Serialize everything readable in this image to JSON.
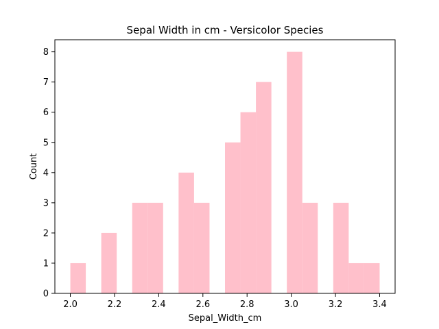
{
  "chart_data": {
    "type": "bar",
    "title": "Sepal Width in cm - Versicolor Species",
    "xlabel": "Sepal_Width_cm",
    "ylabel": "Count",
    "bar_color": "#ffc0cb",
    "bin_width": 0.07,
    "xlim": [
      1.93,
      3.47
    ],
    "ylim": [
      0,
      8.4
    ],
    "x_ticks": [
      2.0,
      2.2,
      2.4,
      2.6,
      2.8,
      3.0,
      3.2,
      3.4
    ],
    "x_tick_labels": [
      "2.0",
      "2.2",
      "2.4",
      "2.6",
      "2.8",
      "3.0",
      "3.2",
      "3.4"
    ],
    "y_ticks": [
      0,
      1,
      2,
      3,
      4,
      5,
      6,
      7,
      8
    ],
    "y_tick_labels": [
      "0",
      "1",
      "2",
      "3",
      "4",
      "5",
      "6",
      "7",
      "8"
    ],
    "bins": [
      {
        "x0": 2.0,
        "x1": 2.07,
        "count": 1
      },
      {
        "x0": 2.07,
        "x1": 2.14,
        "count": 0
      },
      {
        "x0": 2.14,
        "x1": 2.21,
        "count": 2
      },
      {
        "x0": 2.21,
        "x1": 2.28,
        "count": 0
      },
      {
        "x0": 2.28,
        "x1": 2.35,
        "count": 3
      },
      {
        "x0": 2.35,
        "x1": 2.42,
        "count": 3
      },
      {
        "x0": 2.42,
        "x1": 2.49,
        "count": 0
      },
      {
        "x0": 2.49,
        "x1": 2.56,
        "count": 4
      },
      {
        "x0": 2.56,
        "x1": 2.63,
        "count": 3
      },
      {
        "x0": 2.63,
        "x1": 2.7,
        "count": 0
      },
      {
        "x0": 2.7,
        "x1": 2.77,
        "count": 5
      },
      {
        "x0": 2.77,
        "x1": 2.84,
        "count": 6
      },
      {
        "x0": 2.84,
        "x1": 2.91,
        "count": 7
      },
      {
        "x0": 2.91,
        "x1": 2.98,
        "count": 0
      },
      {
        "x0": 2.98,
        "x1": 3.05,
        "count": 8
      },
      {
        "x0": 3.05,
        "x1": 3.12,
        "count": 3
      },
      {
        "x0": 3.12,
        "x1": 3.19,
        "count": 0
      },
      {
        "x0": 3.19,
        "x1": 3.26,
        "count": 3
      },
      {
        "x0": 3.26,
        "x1": 3.33,
        "count": 1
      },
      {
        "x0": 3.33,
        "x1": 3.4,
        "count": 1
      }
    ]
  }
}
